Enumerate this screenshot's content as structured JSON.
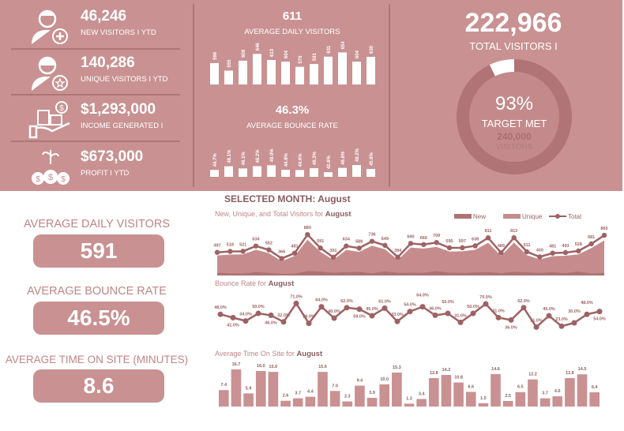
{
  "colors": {
    "panel": "#c99192",
    "dark": "#ad7677",
    "line": "#9e6264",
    "unique": "#c68c8d",
    "new": "#ad7374",
    "bar": "#c99192",
    "white": "#ffffff"
  },
  "kpis": [
    {
      "icon": "user-plus-icon",
      "value": "46,246",
      "label": "NEW VISITORS I YTD"
    },
    {
      "icon": "user-star-icon",
      "value": "140,286",
      "label": "UNIQUE VISITORS I YTD"
    },
    {
      "icon": "hand-coins-icon",
      "value": "$1,293,000",
      "label": "INCOME GENERATED I"
    },
    {
      "icon": "money-bags-icon",
      "value": "$673,000",
      "label": "PROFIT I YTD"
    }
  ],
  "monthly": {
    "avg_daily_value": "611",
    "avg_daily_label": "AVERAGE DAILY VISITORS",
    "bounce_value": "46.3%",
    "bounce_label": "AVERAGE BOUNCE RATE"
  },
  "total": {
    "value": "222,966",
    "label": "TOTAL VISITORS  I",
    "pct": "93%",
    "target_label": "TARGET MET",
    "target_value": "240,000",
    "target_unit": "VISITORS",
    "fraction": 0.93
  },
  "selected_month": {
    "label": "SELECTED MONTH:",
    "month": "August"
  },
  "left_stats": [
    {
      "label": "AVERAGE DAILY VISITORS",
      "value": "591"
    },
    {
      "label": "AVERAGE BOUNCE RATE",
      "value": "46.5%"
    },
    {
      "label": "AVERAGE TIME ON SITE (MINUTES)",
      "value": "8.6"
    }
  ],
  "chart_data": [
    {
      "type": "bar",
      "title": "",
      "values": [
        596,
        555,
        609,
        646,
        613,
        604,
        576,
        591,
        631,
        654,
        604,
        630
      ],
      "labels": [
        "596",
        "555",
        "609",
        "646",
        "613",
        "604",
        "576",
        "591",
        "631",
        "654",
        "604",
        "630"
      ]
    },
    {
      "type": "bar",
      "title": "",
      "values": [
        44.7,
        48.1,
        46.1,
        48.2,
        49.0,
        44.8,
        44.6,
        46.3,
        42.6,
        46.6,
        49.2,
        45.6
      ],
      "labels": [
        "44.7%",
        "48.1%",
        "46.1%",
        "48.2%",
        "49.0%",
        "44.8%",
        "44.6%",
        "46.3%",
        "42.6%",
        "46.6%",
        "49.2%",
        "45.6%"
      ]
    },
    {
      "type": "area",
      "title": "New, Unique, and Total Visitors for",
      "title_month": "August",
      "legend_placement": "top-right",
      "series": [
        {
          "name": "New",
          "values": [
            60,
            45,
            40,
            75,
            55,
            35,
            40,
            95,
            85,
            60,
            70,
            80,
            45,
            90,
            55,
            60,
            55,
            95,
            60,
            55,
            65,
            75,
            50,
            80,
            65,
            55,
            70,
            50,
            85,
            40,
            55
          ]
        },
        {
          "name": "Unique",
          "values": [
            430,
            450,
            455,
            555,
            480,
            310,
            420,
            770,
            510,
            335,
            550,
            510,
            640,
            565,
            335,
            600,
            580,
            615,
            515,
            520,
            555,
            705,
            420,
            710,
            440,
            345,
            415,
            425,
            455,
            590,
            755
          ]
        },
        {
          "name": "Total",
          "values": [
            497,
            518,
            521,
            634,
            552,
            366,
            481,
            880,
            591,
            391,
            634,
            588,
            736,
            649,
            394,
            690,
            666,
            709,
            595,
            597,
            638,
            811,
            489,
            813,
            511,
            400,
            481,
            493,
            528,
            681,
            865
          ]
        }
      ]
    },
    {
      "type": "line",
      "title": "Bounce Rate for",
      "title_month": "August",
      "values": [
        48.0,
        41.0,
        34.0,
        50.0,
        46.0,
        32.0,
        71.0,
        29.0,
        64.0,
        40.0,
        62.0,
        59.0,
        45.0,
        61.0,
        33.0,
        54.0,
        64.0,
        46.0,
        50.0,
        31.0,
        50.0,
        70.0,
        41.0,
        36.0,
        62.0,
        21.0,
        45.0,
        23.0,
        30.0,
        48.0,
        54.0
      ]
    },
    {
      "type": "bar",
      "title": "Average Time On Site for",
      "title_month": "August",
      "values": [
        7.4,
        16.7,
        5.9,
        16.0,
        15.6,
        2.6,
        3.7,
        4.4,
        15.6,
        7.0,
        2.3,
        9.4,
        3.9,
        10.0,
        15.3,
        1.3,
        3.4,
        12.8,
        14.2,
        10.8,
        6.6,
        1.5,
        14.6,
        2.5,
        6.5,
        12.2,
        3.7,
        4.6,
        12.8,
        14.5,
        6.4
      ]
    }
  ]
}
